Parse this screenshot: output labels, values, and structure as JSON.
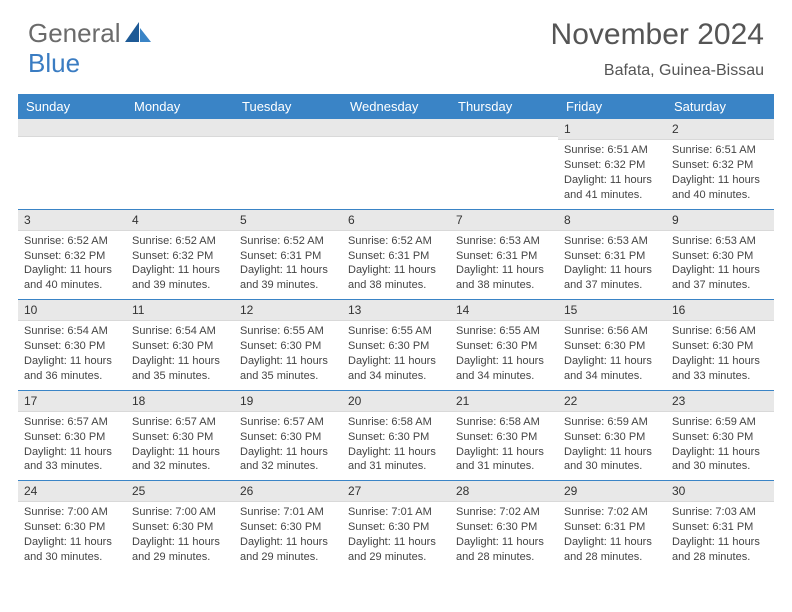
{
  "logo": {
    "text1": "General",
    "text2": "Blue"
  },
  "title": "November 2024",
  "location": "Bafata, Guinea-Bissau",
  "colors": {
    "header_bar": "#3a84c6",
    "row_border": "#3a84c6",
    "daynum_bg": "#e8e8e8",
    "text": "#444444",
    "title_text": "#555555",
    "logo_gray": "#6b6b6b",
    "logo_blue": "#3a7cc2",
    "background": "#ffffff"
  },
  "typography": {
    "title_fontsize": 30,
    "location_fontsize": 16,
    "dow_fontsize": 13,
    "cell_fontsize": 11,
    "daynum_fontsize": 12
  },
  "days_of_week": [
    "Sunday",
    "Monday",
    "Tuesday",
    "Wednesday",
    "Thursday",
    "Friday",
    "Saturday"
  ],
  "weeks": [
    [
      {
        "n": "",
        "sunrise": "",
        "sunset": "",
        "daylight": ""
      },
      {
        "n": "",
        "sunrise": "",
        "sunset": "",
        "daylight": ""
      },
      {
        "n": "",
        "sunrise": "",
        "sunset": "",
        "daylight": ""
      },
      {
        "n": "",
        "sunrise": "",
        "sunset": "",
        "daylight": ""
      },
      {
        "n": "",
        "sunrise": "",
        "sunset": "",
        "daylight": ""
      },
      {
        "n": "1",
        "sunrise": "Sunrise: 6:51 AM",
        "sunset": "Sunset: 6:32 PM",
        "daylight": "Daylight: 11 hours and 41 minutes."
      },
      {
        "n": "2",
        "sunrise": "Sunrise: 6:51 AM",
        "sunset": "Sunset: 6:32 PM",
        "daylight": "Daylight: 11 hours and 40 minutes."
      }
    ],
    [
      {
        "n": "3",
        "sunrise": "Sunrise: 6:52 AM",
        "sunset": "Sunset: 6:32 PM",
        "daylight": "Daylight: 11 hours and 40 minutes."
      },
      {
        "n": "4",
        "sunrise": "Sunrise: 6:52 AM",
        "sunset": "Sunset: 6:32 PM",
        "daylight": "Daylight: 11 hours and 39 minutes."
      },
      {
        "n": "5",
        "sunrise": "Sunrise: 6:52 AM",
        "sunset": "Sunset: 6:31 PM",
        "daylight": "Daylight: 11 hours and 39 minutes."
      },
      {
        "n": "6",
        "sunrise": "Sunrise: 6:52 AM",
        "sunset": "Sunset: 6:31 PM",
        "daylight": "Daylight: 11 hours and 38 minutes."
      },
      {
        "n": "7",
        "sunrise": "Sunrise: 6:53 AM",
        "sunset": "Sunset: 6:31 PM",
        "daylight": "Daylight: 11 hours and 38 minutes."
      },
      {
        "n": "8",
        "sunrise": "Sunrise: 6:53 AM",
        "sunset": "Sunset: 6:31 PM",
        "daylight": "Daylight: 11 hours and 37 minutes."
      },
      {
        "n": "9",
        "sunrise": "Sunrise: 6:53 AM",
        "sunset": "Sunset: 6:30 PM",
        "daylight": "Daylight: 11 hours and 37 minutes."
      }
    ],
    [
      {
        "n": "10",
        "sunrise": "Sunrise: 6:54 AM",
        "sunset": "Sunset: 6:30 PM",
        "daylight": "Daylight: 11 hours and 36 minutes."
      },
      {
        "n": "11",
        "sunrise": "Sunrise: 6:54 AM",
        "sunset": "Sunset: 6:30 PM",
        "daylight": "Daylight: 11 hours and 35 minutes."
      },
      {
        "n": "12",
        "sunrise": "Sunrise: 6:55 AM",
        "sunset": "Sunset: 6:30 PM",
        "daylight": "Daylight: 11 hours and 35 minutes."
      },
      {
        "n": "13",
        "sunrise": "Sunrise: 6:55 AM",
        "sunset": "Sunset: 6:30 PM",
        "daylight": "Daylight: 11 hours and 34 minutes."
      },
      {
        "n": "14",
        "sunrise": "Sunrise: 6:55 AM",
        "sunset": "Sunset: 6:30 PM",
        "daylight": "Daylight: 11 hours and 34 minutes."
      },
      {
        "n": "15",
        "sunrise": "Sunrise: 6:56 AM",
        "sunset": "Sunset: 6:30 PM",
        "daylight": "Daylight: 11 hours and 34 minutes."
      },
      {
        "n": "16",
        "sunrise": "Sunrise: 6:56 AM",
        "sunset": "Sunset: 6:30 PM",
        "daylight": "Daylight: 11 hours and 33 minutes."
      }
    ],
    [
      {
        "n": "17",
        "sunrise": "Sunrise: 6:57 AM",
        "sunset": "Sunset: 6:30 PM",
        "daylight": "Daylight: 11 hours and 33 minutes."
      },
      {
        "n": "18",
        "sunrise": "Sunrise: 6:57 AM",
        "sunset": "Sunset: 6:30 PM",
        "daylight": "Daylight: 11 hours and 32 minutes."
      },
      {
        "n": "19",
        "sunrise": "Sunrise: 6:57 AM",
        "sunset": "Sunset: 6:30 PM",
        "daylight": "Daylight: 11 hours and 32 minutes."
      },
      {
        "n": "20",
        "sunrise": "Sunrise: 6:58 AM",
        "sunset": "Sunset: 6:30 PM",
        "daylight": "Daylight: 11 hours and 31 minutes."
      },
      {
        "n": "21",
        "sunrise": "Sunrise: 6:58 AM",
        "sunset": "Sunset: 6:30 PM",
        "daylight": "Daylight: 11 hours and 31 minutes."
      },
      {
        "n": "22",
        "sunrise": "Sunrise: 6:59 AM",
        "sunset": "Sunset: 6:30 PM",
        "daylight": "Daylight: 11 hours and 30 minutes."
      },
      {
        "n": "23",
        "sunrise": "Sunrise: 6:59 AM",
        "sunset": "Sunset: 6:30 PM",
        "daylight": "Daylight: 11 hours and 30 minutes."
      }
    ],
    [
      {
        "n": "24",
        "sunrise": "Sunrise: 7:00 AM",
        "sunset": "Sunset: 6:30 PM",
        "daylight": "Daylight: 11 hours and 30 minutes."
      },
      {
        "n": "25",
        "sunrise": "Sunrise: 7:00 AM",
        "sunset": "Sunset: 6:30 PM",
        "daylight": "Daylight: 11 hours and 29 minutes."
      },
      {
        "n": "26",
        "sunrise": "Sunrise: 7:01 AM",
        "sunset": "Sunset: 6:30 PM",
        "daylight": "Daylight: 11 hours and 29 minutes."
      },
      {
        "n": "27",
        "sunrise": "Sunrise: 7:01 AM",
        "sunset": "Sunset: 6:30 PM",
        "daylight": "Daylight: 11 hours and 29 minutes."
      },
      {
        "n": "28",
        "sunrise": "Sunrise: 7:02 AM",
        "sunset": "Sunset: 6:30 PM",
        "daylight": "Daylight: 11 hours and 28 minutes."
      },
      {
        "n": "29",
        "sunrise": "Sunrise: 7:02 AM",
        "sunset": "Sunset: 6:31 PM",
        "daylight": "Daylight: 11 hours and 28 minutes."
      },
      {
        "n": "30",
        "sunrise": "Sunrise: 7:03 AM",
        "sunset": "Sunset: 6:31 PM",
        "daylight": "Daylight: 11 hours and 28 minutes."
      }
    ]
  ]
}
